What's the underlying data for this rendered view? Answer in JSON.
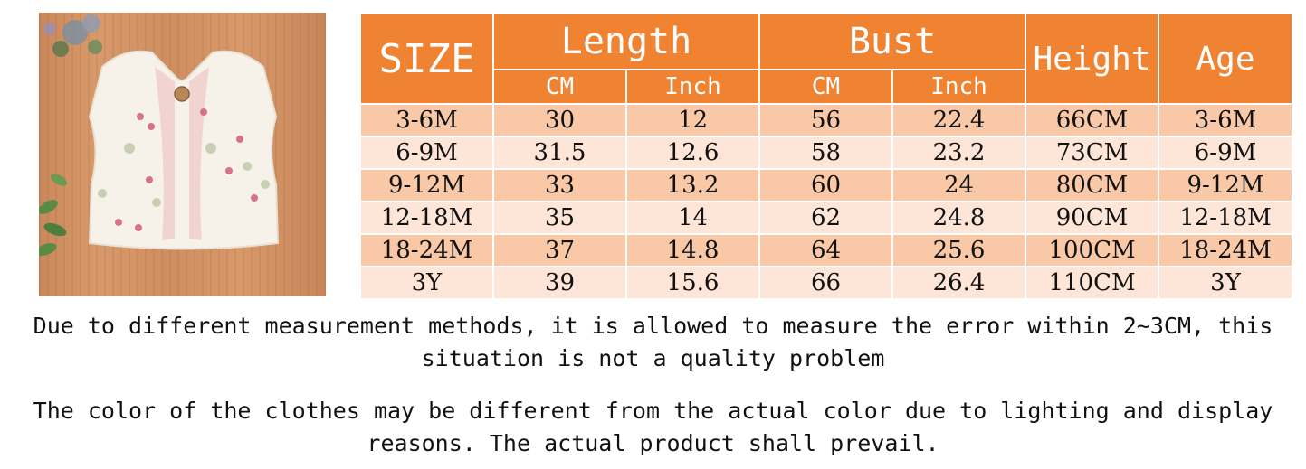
{
  "photo": {
    "alt": "white fleece baby vest with embroidered flowers on wooden background"
  },
  "table": {
    "headers": {
      "size": "SIZE",
      "length": "Length",
      "bust": "Bust",
      "height": "Height",
      "age": "Age",
      "length_cm": "CM",
      "length_inch": "Inch",
      "bust_cm": "CM",
      "bust_inch": "Inch"
    },
    "rows": [
      {
        "size": "3-6M",
        "len_cm": "30",
        "len_in": "12",
        "bust_cm": "56",
        "bust_in": "22.4",
        "height": "66CM",
        "age": "3-6M"
      },
      {
        "size": "6-9M",
        "len_cm": "31.5",
        "len_in": "12.6",
        "bust_cm": "58",
        "bust_in": "23.2",
        "height": "73CM",
        "age": "6-9M"
      },
      {
        "size": "9-12M",
        "len_cm": "33",
        "len_in": "13.2",
        "bust_cm": "60",
        "bust_in": "24",
        "height": "80CM",
        "age": "9-12M"
      },
      {
        "size": "12-18M",
        "len_cm": "35",
        "len_in": "14",
        "bust_cm": "62",
        "bust_in": "24.8",
        "height": "90CM",
        "age": "12-18M"
      },
      {
        "size": "18-24M",
        "len_cm": "37",
        "len_in": "14.8",
        "bust_cm": "64",
        "bust_in": "25.6",
        "height": "100CM",
        "age": "18-24M"
      },
      {
        "size": "3Y",
        "len_cm": "39",
        "len_in": "15.6",
        "bust_cm": "66",
        "bust_in": "26.4",
        "height": "110CM",
        "age": "3Y"
      }
    ]
  },
  "notes": {
    "measurement_line1": "Due to different measurement methods, it is allowed to measure the error within 2~3CM, this",
    "measurement_line2": "situation is not a quality problem",
    "color_line1": "The color of the clothes may be different from the actual color due to lighting and display",
    "color_line2": "reasons. The actual product shall prevail."
  },
  "colors": {
    "header": "#f08332",
    "row_dark": "#f8c8a7",
    "row_light": "#fde5d7"
  }
}
